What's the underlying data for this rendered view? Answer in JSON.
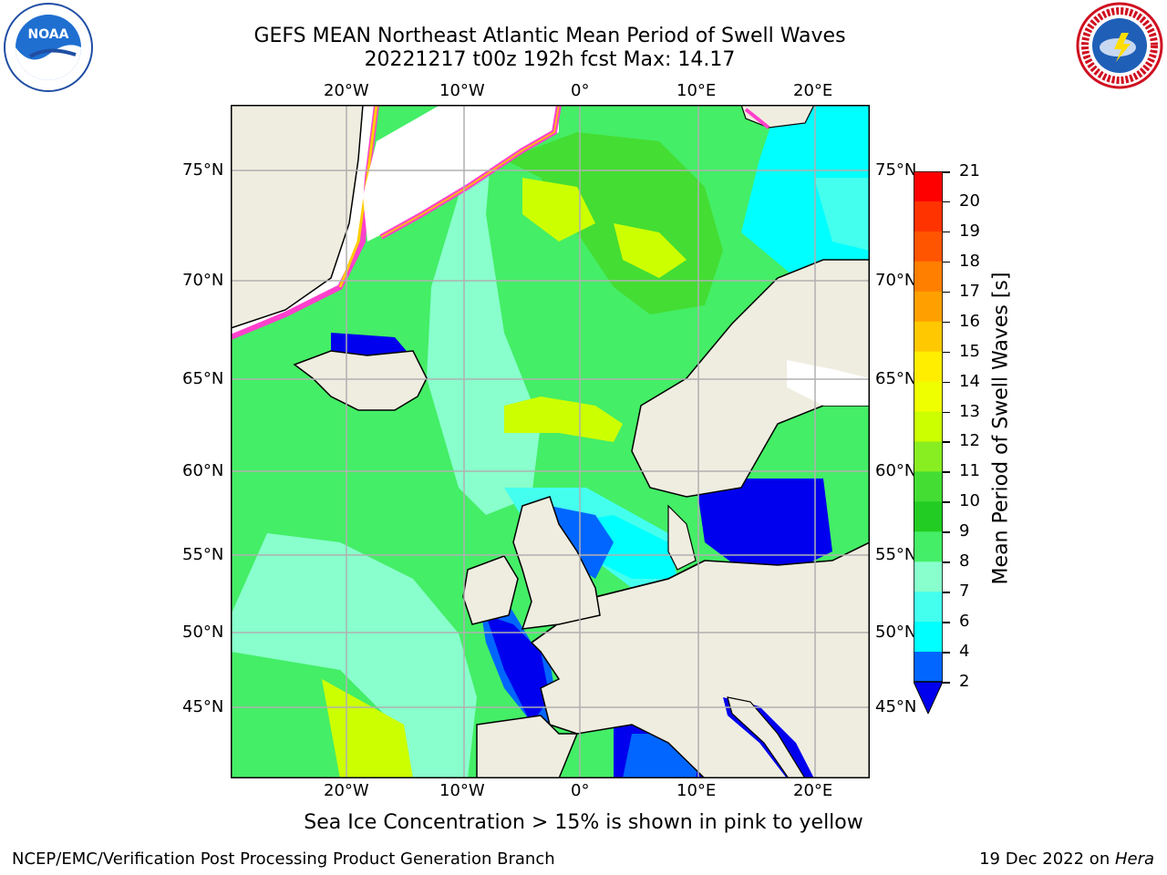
{
  "title": {
    "line1": "GEFS MEAN Northeast Atlantic Mean Period of Swell Waves",
    "line2": "20221217 t00z 192h fcst   Max: 14.17"
  },
  "logos": {
    "left": {
      "icon": "noaa-logo",
      "text": "NOAA"
    },
    "right": {
      "icon": "nws-logo",
      "text": "NATIONAL WEATHER SERVICE"
    }
  },
  "map": {
    "projection_extent": {
      "lon": [
        -30,
        25
      ],
      "lat": [
        41,
        78
      ]
    },
    "lon_labels": [
      "20°W",
      "10°W",
      "0°",
      "10°E",
      "20°E"
    ],
    "lat_labels": [
      "75°N",
      "70°N",
      "65°N",
      "60°N",
      "55°N",
      "50°N",
      "45°N"
    ],
    "land_color": "#efede0",
    "ocean_default_color": "#44ee66",
    "grid_color": "#b0b0b0"
  },
  "colorbar": {
    "label": "Mean Period of Swell Waves [s]",
    "ticks": [
      "21",
      "20",
      "19",
      "18",
      "17",
      "16",
      "15",
      "14",
      "13",
      "12",
      "11",
      "10",
      "9",
      "8",
      "7",
      "6",
      "4",
      "2"
    ],
    "colors": [
      "#ff0000",
      "#ff3300",
      "#ff5500",
      "#ff7f00",
      "#ffa000",
      "#ffc800",
      "#ffee00",
      "#f0ff00",
      "#ccff00",
      "#88ee22",
      "#44dd33",
      "#22cc22",
      "#44ee66",
      "#88ffcc",
      "#44ffee",
      "#00ffff",
      "#0066ff",
      "#0000ee"
    ]
  },
  "footer": {
    "note": "Sea Ice Concentration > 15% is shown in pink to yellow",
    "left": "NCEP/EMC/Verification Post Processing Product Generation Branch",
    "right_date": "19 Dec 2022 on ",
    "right_host": "Hera"
  }
}
